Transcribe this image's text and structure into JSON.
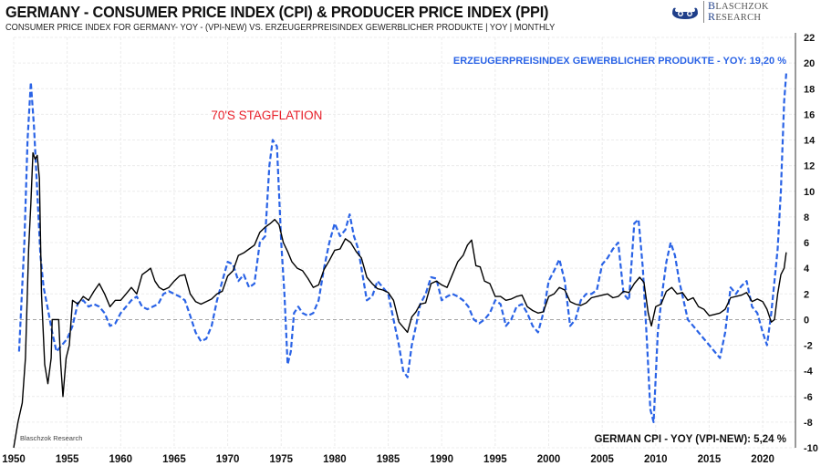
{
  "header": {
    "title": "GERMANY - CONSUMER PRICE INDEX (CPI) & PRODUCER PRICE INDEX (PPI)",
    "subtitle": "CONSUMER PRICE INDEX FOR GERMANY- YOY - (VPI-NEW) VS. ERZEUGERPREISINDEX GEWERBLICHER PRODUKTE  | YOY | MONTHLY"
  },
  "logo": {
    "icon": "viking-ship-logo-icon",
    "line1_cap": "B",
    "line1_rest": "LASCHZOK",
    "line2_cap": "R",
    "line2_rest": "ESEARCH"
  },
  "chart_data": {
    "type": "line",
    "title": "GERMANY - CONSUMER PRICE INDEX (CPI) & PRODUCER PRICE INDEX (PPI)",
    "subtitle": "CONSUMER PRICE INDEX FOR GERMANY- YOY - (VPI-NEW) VS. ERZEUGERPREISINDEX GEWERBLICHER PRODUKTE  | YOY | MONTHLY",
    "xlabel": "",
    "ylabel": "",
    "xlim": [
      1950,
      2023
    ],
    "ylim": [
      -10,
      22
    ],
    "x_ticks": [
      1950,
      1955,
      1960,
      1965,
      1970,
      1975,
      1980,
      1985,
      1990,
      1995,
      2000,
      2005,
      2010,
      2015,
      2020
    ],
    "y_ticks": [
      22,
      20,
      18,
      16,
      14,
      12,
      10,
      8,
      6,
      4,
      2,
      0,
      -2,
      -4,
      -6,
      -8,
      -10
    ],
    "y_axis_side": "right",
    "grid": true,
    "zero_line": "dashed",
    "annotations": [
      {
        "text": "70'S STAGFLATION",
        "x": 1974.5,
        "y": 15.6,
        "color": "#e8202a"
      }
    ],
    "watermark": "Blaschzok  Research",
    "series": [
      {
        "name": "GERMAN CPI - YOY (VPI-NEW)",
        "label": "GERMAN CPI - YOY (VPI-NEW): 5,24 %",
        "label_position": "bottom-right",
        "color": "#000000",
        "style": "solid",
        "last_value": 5.24,
        "x": [
          1950.0,
          1950.4,
          1950.8,
          1951.1,
          1951.4,
          1951.6,
          1951.8,
          1952.0,
          1952.2,
          1952.4,
          1952.6,
          1952.9,
          1953.2,
          1953.5,
          1953.6,
          1953.9,
          1954.2,
          1954.4,
          1954.6,
          1954.9,
          1955.2,
          1955.5,
          1956.0,
          1956.5,
          1957.0,
          1957.5,
          1958.0,
          1958.5,
          1959.0,
          1959.5,
          1960.0,
          1960.5,
          1961.0,
          1961.5,
          1962.0,
          1962.5,
          1962.8,
          1963.2,
          1963.6,
          1964.0,
          1964.5,
          1965.0,
          1965.5,
          1966.0,
          1966.5,
          1967.0,
          1967.5,
          1968.0,
          1968.5,
          1969.0,
          1969.5,
          1970.0,
          1970.5,
          1971.0,
          1971.5,
          1972.0,
          1972.5,
          1973.0,
          1973.5,
          1974.0,
          1974.4,
          1974.8,
          1975.2,
          1975.6,
          1976.0,
          1976.5,
          1977.0,
          1977.5,
          1978.0,
          1978.5,
          1979.0,
          1979.5,
          1980.0,
          1980.5,
          1981.0,
          1981.5,
          1982.0,
          1982.5,
          1983.0,
          1983.5,
          1984.0,
          1984.5,
          1985.0,
          1985.5,
          1986.0,
          1986.4,
          1986.8,
          1987.2,
          1987.6,
          1988.0,
          1988.5,
          1989.0,
          1989.5,
          1990.0,
          1990.5,
          1991.0,
          1991.5,
          1992.0,
          1992.4,
          1992.8,
          1993.2,
          1993.6,
          1994.0,
          1994.5,
          1995.0,
          1995.5,
          1996.0,
          1996.5,
          1997.0,
          1997.5,
          1998.0,
          1998.5,
          1999.0,
          1999.5,
          2000.0,
          2000.5,
          2001.0,
          2001.5,
          2002.0,
          2002.5,
          2003.0,
          2003.5,
          2004.0,
          2004.5,
          2005.0,
          2005.5,
          2006.0,
          2006.5,
          2007.0,
          2007.5,
          2008.0,
          2008.5,
          2008.9,
          2009.3,
          2009.6,
          2010.0,
          2010.5,
          2011.0,
          2011.5,
          2012.0,
          2012.5,
          2013.0,
          2013.5,
          2014.0,
          2014.5,
          2015.0,
          2015.5,
          2016.0,
          2016.5,
          2017.0,
          2017.5,
          2018.0,
          2018.5,
          2019.0,
          2019.5,
          2020.0,
          2020.4,
          2020.8,
          2021.1,
          2021.4,
          2021.7,
          2022.0,
          2022.2
        ],
        "values": [
          -10.0,
          -8.0,
          -6.5,
          -3.0,
          5.5,
          9.0,
          13.0,
          12.5,
          12.8,
          11.0,
          2.0,
          -3.5,
          -5.0,
          -3.0,
          0.0,
          0.0,
          0.0,
          -3.5,
          -6.0,
          -3.0,
          -2.0,
          1.5,
          1.2,
          1.8,
          1.5,
          2.2,
          2.8,
          2.0,
          1.0,
          1.5,
          1.5,
          2.0,
          2.5,
          2.0,
          3.5,
          3.8,
          4.0,
          3.0,
          2.5,
          2.3,
          2.5,
          3.0,
          3.4,
          3.5,
          2.0,
          1.4,
          1.2,
          1.4,
          1.6,
          2.0,
          2.2,
          3.4,
          3.8,
          5.0,
          5.2,
          5.5,
          5.8,
          6.8,
          7.2,
          7.5,
          7.8,
          7.4,
          6.0,
          5.3,
          4.5,
          4.0,
          3.8,
          3.2,
          2.5,
          2.7,
          3.9,
          4.6,
          5.4,
          5.5,
          6.3,
          6.0,
          5.3,
          4.8,
          3.3,
          2.8,
          2.4,
          2.3,
          2.1,
          1.5,
          -0.2,
          -0.6,
          -1.0,
          0.2,
          0.6,
          1.2,
          1.3,
          2.8,
          3.0,
          2.7,
          2.5,
          3.5,
          4.5,
          5.0,
          5.8,
          6.2,
          4.2,
          4.1,
          3.0,
          2.8,
          1.8,
          1.8,
          1.5,
          1.6,
          1.8,
          1.9,
          1.0,
          0.7,
          0.5,
          0.6,
          1.8,
          2.0,
          2.5,
          2.3,
          1.4,
          1.2,
          1.1,
          1.3,
          1.7,
          1.8,
          1.9,
          2.0,
          1.7,
          1.8,
          2.2,
          2.1,
          2.8,
          3.3,
          2.9,
          0.5,
          -0.5,
          1.0,
          1.2,
          2.2,
          2.5,
          2.0,
          2.1,
          1.5,
          1.7,
          1.0,
          0.8,
          0.3,
          0.4,
          0.5,
          0.8,
          1.7,
          1.8,
          1.9,
          2.1,
          1.4,
          1.6,
          1.4,
          0.8,
          -0.2,
          0.0,
          2.0,
          3.5,
          4.0,
          5.24
        ]
      },
      {
        "name": "ERZEUGERPREISINDEX GEWERBLICHER PRODUKTE - YOY",
        "label": "ERZEUGERPREISINDEX GEWERBLICHER PRODUKTE - YOY: 19,20 %",
        "label_position": "top-right",
        "color": "#2a63e6",
        "style": "dashed",
        "last_value": 19.2,
        "x": [
          1950.5,
          1951.0,
          1951.3,
          1951.6,
          1951.9,
          1952.2,
          1952.5,
          1952.8,
          1953.2,
          1953.6,
          1954.0,
          1954.5,
          1955.0,
          1955.5,
          1956.0,
          1956.5,
          1957.0,
          1957.5,
          1958.0,
          1958.5,
          1959.0,
          1959.5,
          1960.0,
          1960.5,
          1961.0,
          1961.5,
          1962.0,
          1962.5,
          1963.0,
          1963.5,
          1964.0,
          1964.5,
          1965.0,
          1965.5,
          1966.0,
          1966.5,
          1967.0,
          1967.5,
          1968.0,
          1968.5,
          1969.0,
          1969.5,
          1970.0,
          1970.5,
          1971.0,
          1971.5,
          1972.0,
          1972.5,
          1973.0,
          1973.5,
          1973.9,
          1974.2,
          1974.6,
          1975.0,
          1975.3,
          1975.6,
          1975.9,
          1976.2,
          1976.6,
          1977.0,
          1977.5,
          1978.0,
          1978.5,
          1979.0,
          1979.5,
          1980.0,
          1980.5,
          1981.0,
          1981.4,
          1981.8,
          1982.2,
          1982.6,
          1983.0,
          1983.5,
          1984.0,
          1984.5,
          1985.0,
          1985.5,
          1986.0,
          1986.4,
          1986.8,
          1987.2,
          1987.6,
          1988.0,
          1988.5,
          1989.0,
          1989.5,
          1990.0,
          1990.5,
          1991.0,
          1991.5,
          1992.0,
          1992.5,
          1993.0,
          1993.5,
          1994.0,
          1994.5,
          1995.0,
          1995.5,
          1996.0,
          1996.5,
          1997.0,
          1997.5,
          1998.0,
          1998.5,
          1999.0,
          1999.5,
          2000.0,
          2000.5,
          2001.0,
          2001.5,
          2002.0,
          2002.5,
          2003.0,
          2003.5,
          2004.0,
          2004.5,
          2005.0,
          2005.5,
          2006.0,
          2006.5,
          2007.0,
          2007.5,
          2008.0,
          2008.4,
          2008.8,
          2009.2,
          2009.5,
          2009.8,
          2010.2,
          2010.6,
          2011.0,
          2011.4,
          2011.8,
          2012.2,
          2012.6,
          2013.0,
          2013.5,
          2014.0,
          2014.5,
          2015.0,
          2015.5,
          2016.0,
          2016.5,
          2017.0,
          2017.5,
          2018.0,
          2018.5,
          2019.0,
          2019.5,
          2020.0,
          2020.4,
          2020.8,
          2021.1,
          2021.4,
          2021.7,
          2022.0,
          2022.2
        ],
        "values": [
          -2.5,
          6.0,
          14.0,
          18.5,
          15.0,
          10.0,
          5.0,
          2.5,
          0.8,
          -1.0,
          -2.5,
          -2.0,
          -1.5,
          -0.5,
          1.3,
          1.5,
          1.0,
          1.2,
          1.0,
          0.5,
          -0.5,
          -0.3,
          0.5,
          1.0,
          1.5,
          1.8,
          1.0,
          0.8,
          1.0,
          1.2,
          2.0,
          2.2,
          2.0,
          1.8,
          1.5,
          0.3,
          -1.0,
          -1.7,
          -1.5,
          -0.5,
          1.5,
          3.0,
          4.5,
          4.3,
          3.0,
          3.5,
          2.5,
          2.8,
          6.0,
          6.5,
          12.0,
          14.0,
          13.5,
          6.0,
          2.0,
          -3.5,
          -2.5,
          0.5,
          1.0,
          0.5,
          0.3,
          0.5,
          1.5,
          4.0,
          6.0,
          7.5,
          6.5,
          7.0,
          8.2,
          6.5,
          5.5,
          3.5,
          1.5,
          1.8,
          3.0,
          2.5,
          2.0,
          0.0,
          -2.0,
          -4.0,
          -4.5,
          -2.0,
          -0.5,
          1.2,
          2.0,
          3.3,
          3.2,
          1.5,
          1.8,
          2.0,
          1.8,
          1.5,
          1.0,
          0.0,
          -0.3,
          0.0,
          0.5,
          1.5,
          1.2,
          -0.5,
          0.0,
          1.0,
          1.2,
          0.5,
          -0.5,
          -1.0,
          0.5,
          3.0,
          3.8,
          4.7,
          3.0,
          -0.5,
          0.0,
          1.5,
          2.0,
          2.0,
          2.3,
          4.3,
          4.8,
          5.5,
          6.0,
          2.0,
          1.5,
          7.5,
          7.8,
          4.0,
          -2.0,
          -7.0,
          -8.0,
          -1.0,
          2.0,
          4.5,
          6.0,
          5.0,
          3.0,
          1.5,
          0.0,
          -0.5,
          -1.0,
          -1.5,
          -2.0,
          -2.5,
          -3.0,
          -1.0,
          2.5,
          2.0,
          2.6,
          3.0,
          1.0,
          0.5,
          -1.0,
          -2.0,
          0.5,
          3.0,
          5.5,
          10.0,
          17.0,
          19.2
        ]
      }
    ]
  }
}
